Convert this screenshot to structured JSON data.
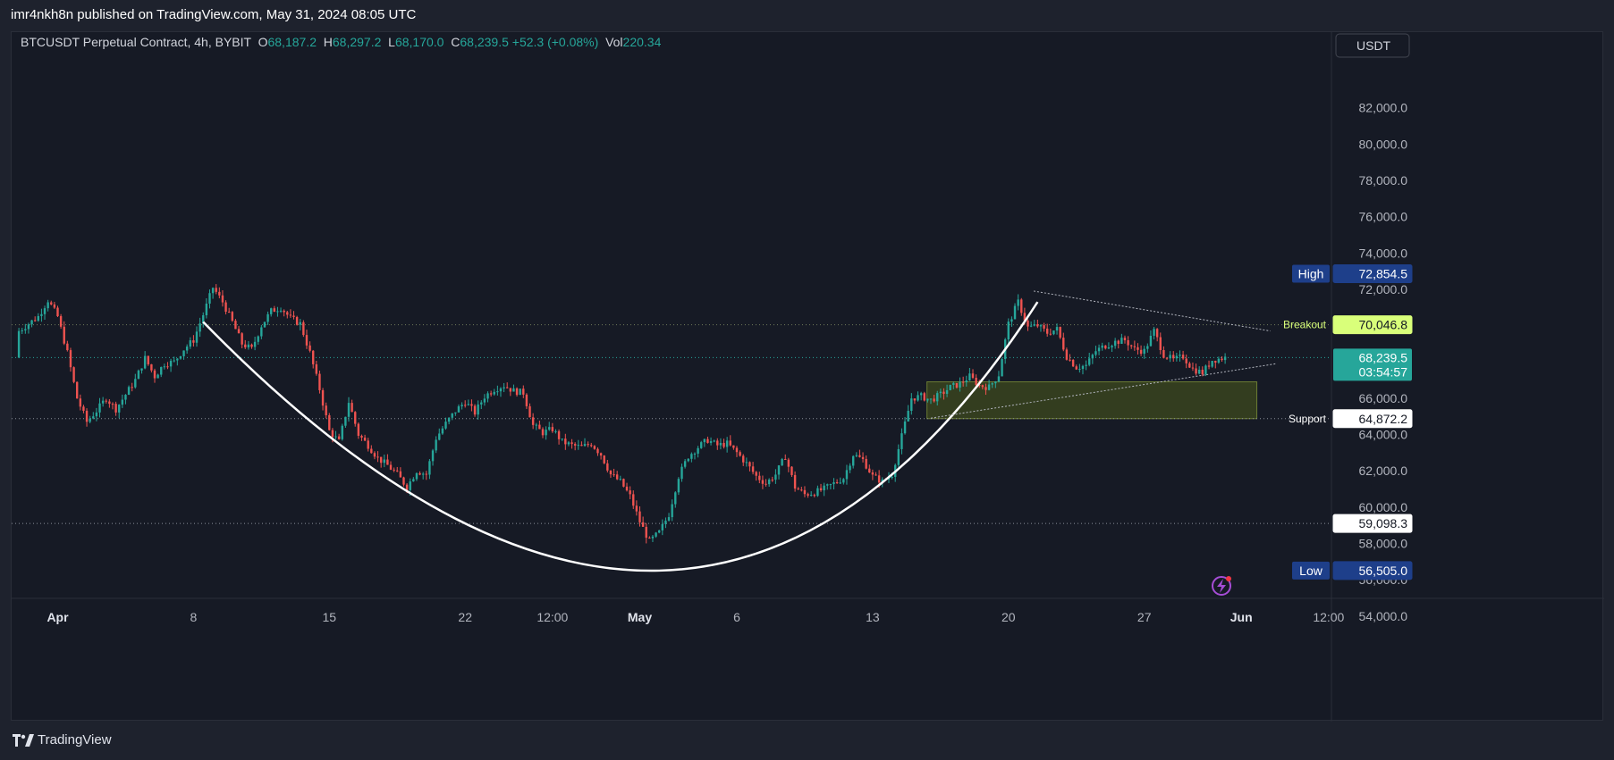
{
  "header": {
    "published_line": "imr4nkh8n published on TradingView.com, May 31, 2024 08:05 UTC"
  },
  "footer": {
    "brand": "TradingView"
  },
  "legend": {
    "symbol": "BTCUSDT Perpetual Contract, 4h, BYBIT",
    "o_label": "O",
    "o_value": "68,187.2",
    "h_label": "H",
    "h_value": "68,297.2",
    "l_label": "L",
    "l_value": "68,170.0",
    "c_label": "C",
    "c_value": "68,239.5",
    "change": "+52.3 (+0.08%)",
    "vol_label": "Vol",
    "vol_value": "220.34"
  },
  "currency_button": "USDT",
  "colors": {
    "up": "#26a69a",
    "down": "#ef5350",
    "price_tag": "#26a69a",
    "breakout": "#d9ff7a",
    "high_low_tag": "#1e3f8a"
  },
  "chart_data": {
    "type": "candlestick",
    "timeframe": "4h",
    "y_ticks": [
      "82,000.0",
      "80,000.0",
      "78,000.0",
      "76,000.0",
      "74,000.0",
      "72,000.0",
      "66,000.0",
      "64,000.0",
      "62,000.0",
      "60,000.0",
      "58,000.0",
      "56,000.0",
      "54,000.0"
    ],
    "x_ticks": [
      {
        "label": "Apr",
        "day": 0,
        "bold": true
      },
      {
        "label": "8",
        "day": 7,
        "bold": false
      },
      {
        "label": "15",
        "day": 14,
        "bold": false
      },
      {
        "label": "22",
        "day": 21,
        "bold": false
      },
      {
        "label": "12:00",
        "day": 25.5,
        "bold": false
      },
      {
        "label": "May",
        "day": 30,
        "bold": true
      },
      {
        "label": "6",
        "day": 35,
        "bold": false
      },
      {
        "label": "13",
        "day": 42,
        "bold": false
      },
      {
        "label": "20",
        "day": 49,
        "bold": false
      },
      {
        "label": "27",
        "day": 56,
        "bold": false
      },
      {
        "label": "Jun",
        "day": 61,
        "bold": true
      },
      {
        "label": "12:00",
        "day": 65.5,
        "bold": false
      }
    ],
    "price_labels": {
      "high": {
        "label": "High",
        "value": "72,854.5",
        "price": 72854.5
      },
      "breakout": {
        "label": "Breakout",
        "value": "70,046.8",
        "price": 70046.8
      },
      "last": {
        "value": "68,239.5",
        "price": 68239.5,
        "countdown": "03:54:57"
      },
      "support": {
        "label": "Support",
        "value": "64,872.2",
        "price": 64872.2
      },
      "level": {
        "value": "59,098.3",
        "price": 59098.3
      },
      "low": {
        "label": "Low",
        "value": "56,505.0",
        "price": 56505.0
      }
    },
    "close_path": [
      [
        -2,
        69700
      ],
      [
        -1,
        70500
      ],
      [
        -0.5,
        71400
      ],
      [
        0,
        70500
      ],
      [
        0.5,
        68500
      ],
      [
        1,
        66000
      ],
      [
        1.5,
        64700
      ],
      [
        2,
        65300
      ],
      [
        2.5,
        66000
      ],
      [
        3,
        65400
      ],
      [
        3.5,
        66200
      ],
      [
        4,
        67000
      ],
      [
        4.5,
        68200
      ],
      [
        5,
        67200
      ],
      [
        5.5,
        67900
      ],
      [
        6,
        68000
      ],
      [
        6.5,
        68700
      ],
      [
        7,
        69200
      ],
      [
        7.5,
        70600
      ],
      [
        8,
        72100
      ],
      [
        8.5,
        71300
      ],
      [
        9,
        70200
      ],
      [
        9.5,
        69000
      ],
      [
        10,
        68700
      ],
      [
        10.5,
        70000
      ],
      [
        11,
        70800
      ],
      [
        11.5,
        71000
      ],
      [
        12,
        70400
      ],
      [
        12.5,
        70100
      ],
      [
        13,
        68500
      ],
      [
        13.5,
        66500
      ],
      [
        14,
        64200
      ],
      [
        14.5,
        63600
      ],
      [
        15,
        65800
      ],
      [
        15.5,
        64000
      ],
      [
        16,
        63400
      ],
      [
        16.5,
        62700
      ],
      [
        17,
        62300
      ],
      [
        17.5,
        61800
      ],
      [
        18,
        61100
      ],
      [
        18.5,
        62000
      ],
      [
        19,
        61800
      ],
      [
        19.5,
        63800
      ],
      [
        20,
        64600
      ],
      [
        20.5,
        65300
      ],
      [
        21,
        65800
      ],
      [
        21.5,
        65200
      ],
      [
        22,
        66100
      ],
      [
        22.5,
        66500
      ],
      [
        23,
        66700
      ],
      [
        23.5,
        66400
      ],
      [
        24,
        66300
      ],
      [
        24.5,
        64500
      ],
      [
        25,
        64100
      ],
      [
        25.5,
        64300
      ],
      [
        26,
        63600
      ],
      [
        26.5,
        63400
      ],
      [
        27,
        63300
      ],
      [
        27.5,
        63500
      ],
      [
        28,
        62900
      ],
      [
        28.5,
        61800
      ],
      [
        29,
        61400
      ],
      [
        29.5,
        60600
      ],
      [
        30,
        59200
      ],
      [
        30.5,
        58100
      ],
      [
        31,
        58600
      ],
      [
        31.5,
        59600
      ],
      [
        32,
        61700
      ],
      [
        32.5,
        62800
      ],
      [
        33,
        63300
      ],
      [
        33.5,
        63700
      ],
      [
        34,
        63400
      ],
      [
        34.5,
        63500
      ],
      [
        35,
        63000
      ],
      [
        35.5,
        62400
      ],
      [
        36,
        61700
      ],
      [
        36.5,
        61300
      ],
      [
        37,
        61800
      ],
      [
        37.5,
        62800
      ],
      [
        38,
        61100
      ],
      [
        38.5,
        60700
      ],
      [
        39,
        60800
      ],
      [
        39.5,
        61000
      ],
      [
        40,
        61300
      ],
      [
        40.5,
        61600
      ],
      [
        41,
        62900
      ],
      [
        41.5,
        62600
      ],
      [
        42,
        61700
      ],
      [
        42.5,
        61400
      ],
      [
        43,
        61800
      ],
      [
        43.5,
        63900
      ],
      [
        44,
        66000
      ],
      [
        44.5,
        66100
      ],
      [
        45,
        65900
      ],
      [
        45.5,
        66200
      ],
      [
        46,
        66600
      ],
      [
        46.5,
        66800
      ],
      [
        47,
        67200
      ],
      [
        47.5,
        66700
      ],
      [
        48,
        66600
      ],
      [
        48.5,
        67300
      ],
      [
        49,
        70100
      ],
      [
        49.5,
        71300
      ],
      [
        50,
        69900
      ],
      [
        50.5,
        70000
      ],
      [
        51,
        69600
      ],
      [
        51.5,
        69800
      ],
      [
        52,
        68300
      ],
      [
        52.5,
        67700
      ],
      [
        53,
        67800
      ],
      [
        53.5,
        68600
      ],
      [
        54,
        68900
      ],
      [
        54.5,
        69100
      ],
      [
        55,
        69200
      ],
      [
        55.5,
        68700
      ],
      [
        56,
        68600
      ],
      [
        56.5,
        69700
      ],
      [
        57,
        68400
      ],
      [
        57.5,
        68100
      ],
      [
        58,
        68300
      ],
      [
        58.5,
        67600
      ],
      [
        59,
        67400
      ],
      [
        59.5,
        68100
      ],
      [
        60,
        68200
      ],
      [
        60.2,
        68239.5
      ]
    ],
    "cup_curve": {
      "start": [
        7.5,
        70200
      ],
      "bottom": [
        31,
        56500
      ],
      "end": [
        50.5,
        71300
      ]
    },
    "wedge_upper": [
      [
        50.3,
        71900
      ],
      [
        62.5,
        69700
      ]
    ],
    "wedge_lower": [
      [
        45,
        64900
      ],
      [
        62.8,
        67900
      ]
    ],
    "zone": {
      "x0": 44.8,
      "x1": 61.8,
      "top": 66900,
      "bottom": 64872.2,
      "color": "#3d4a1e"
    }
  }
}
